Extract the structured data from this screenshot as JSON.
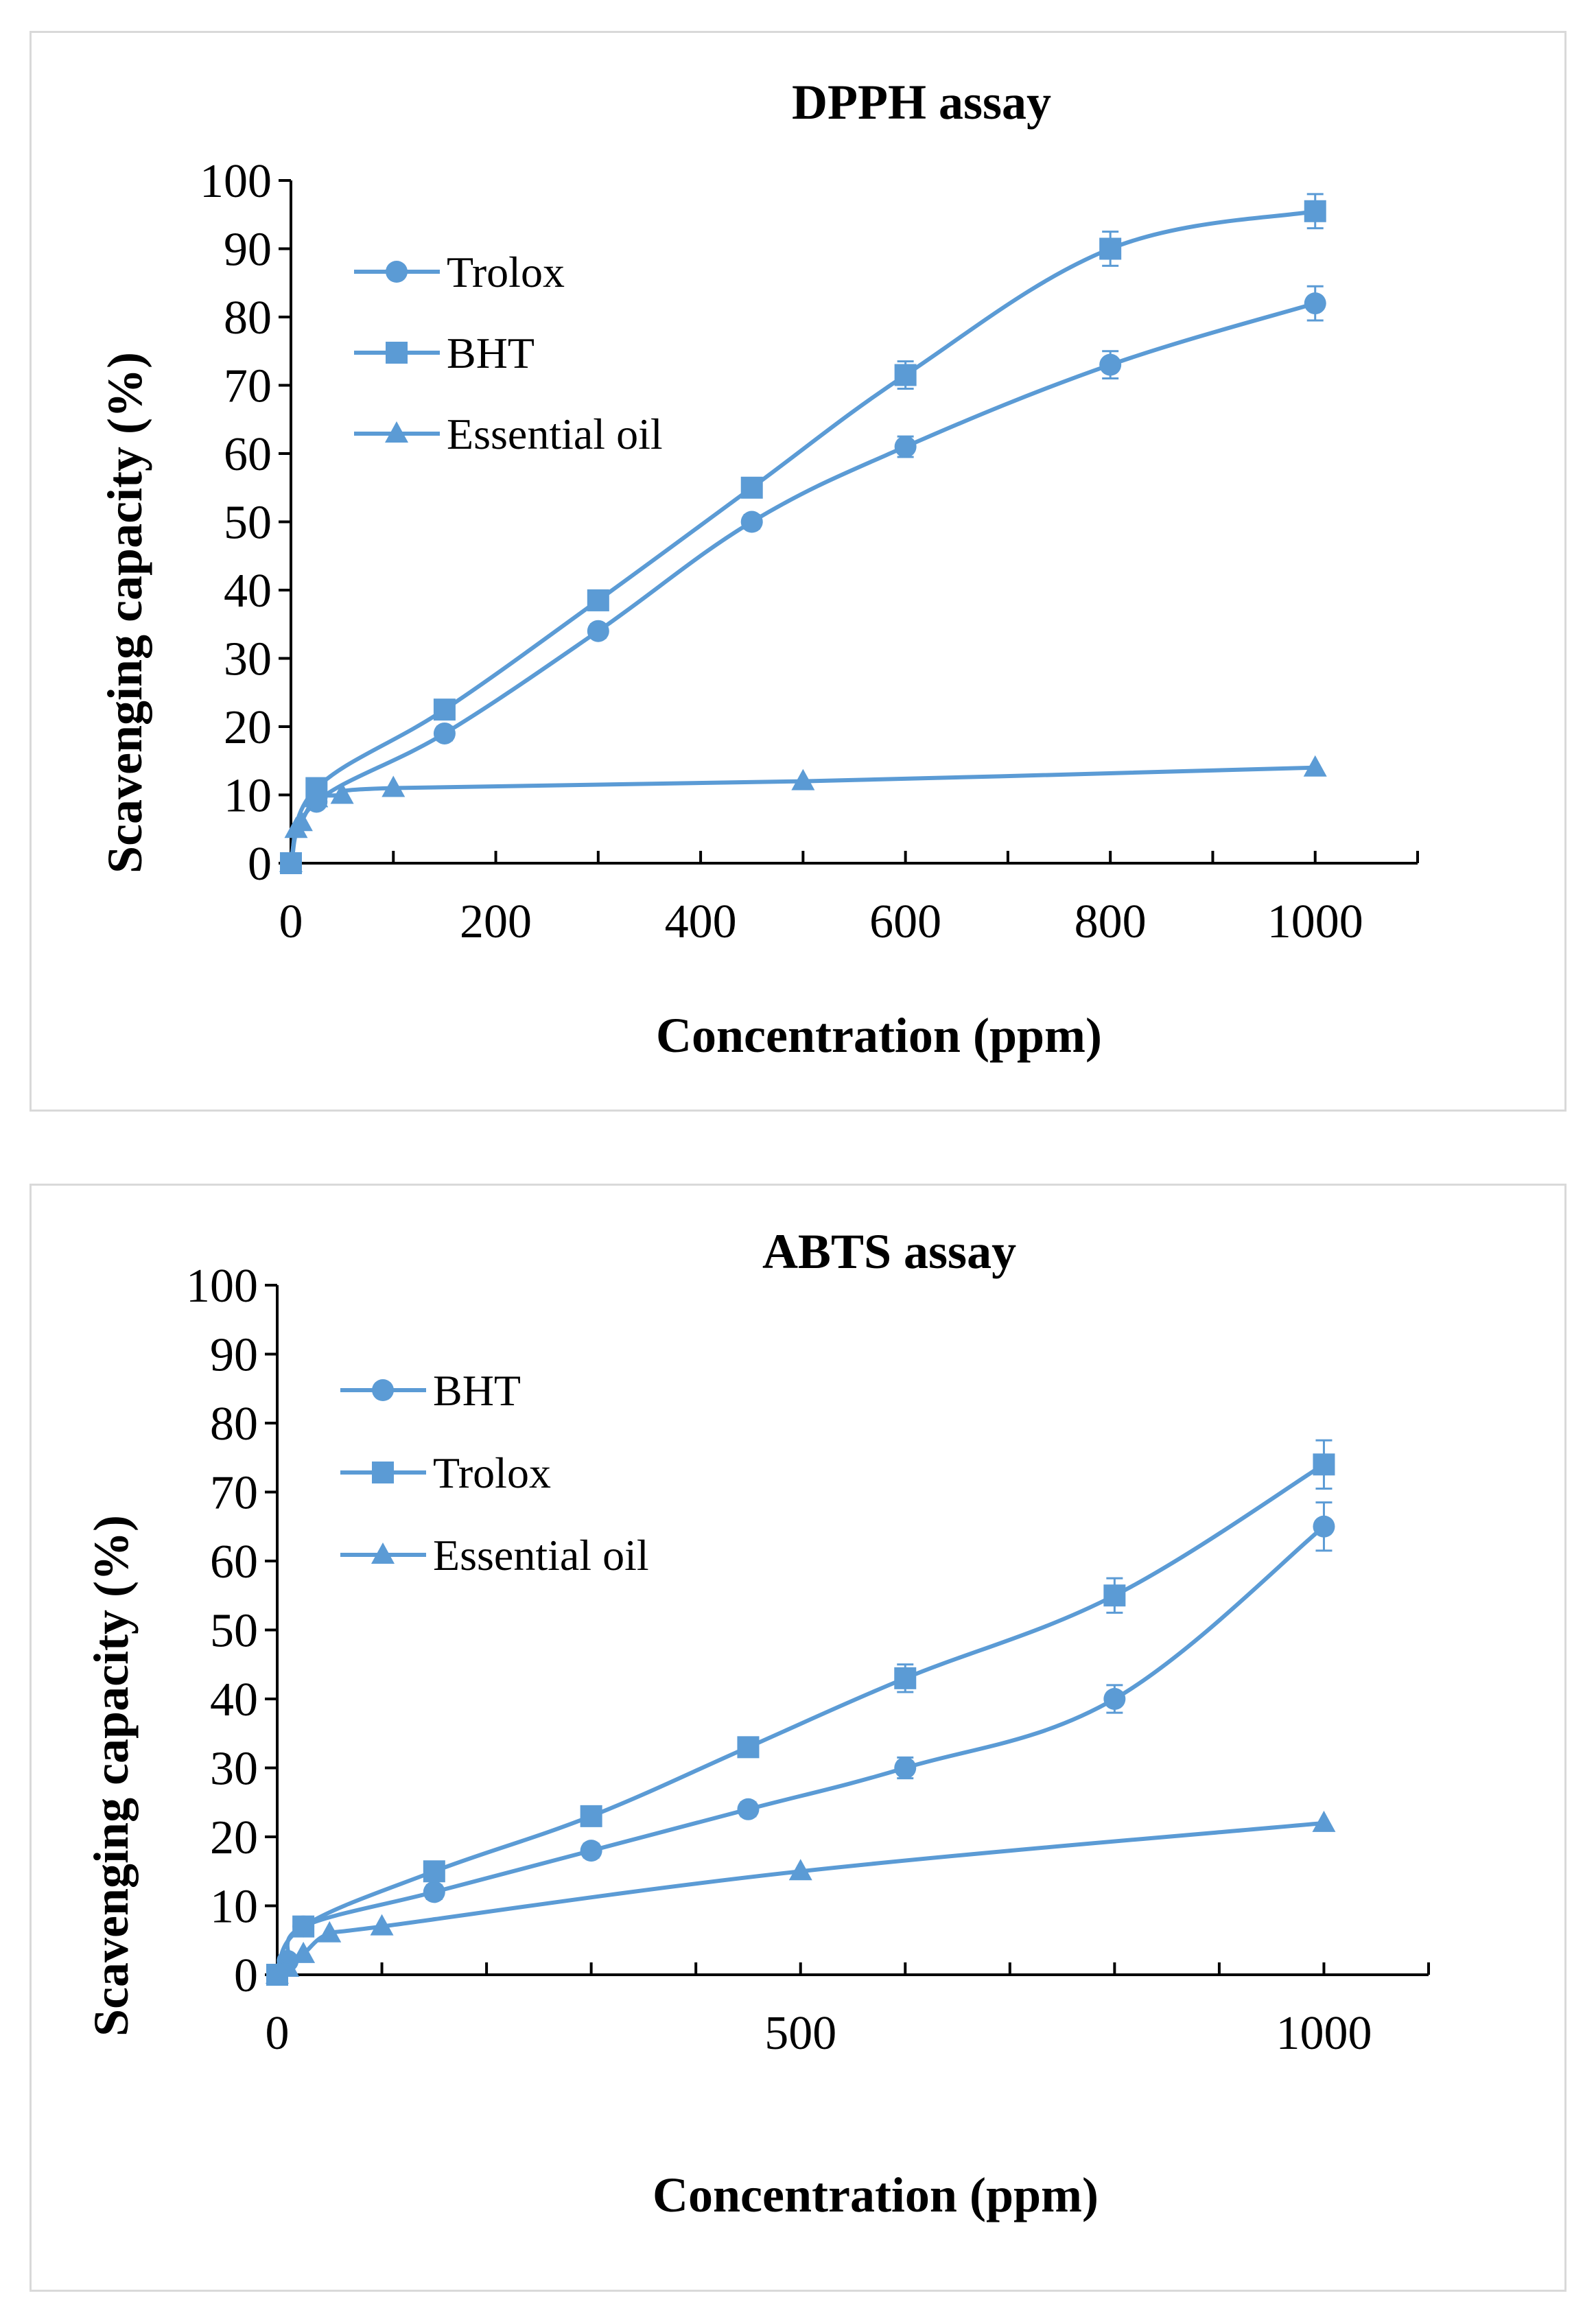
{
  "chart_data": [
    {
      "type": "line",
      "title": "DPPH assay",
      "xlabel": "Concentration (ppm)",
      "ylabel": "Scavenging capacity (%)",
      "xlim": [
        0,
        1100
      ],
      "ylim": [
        0,
        100
      ],
      "xticks": [
        0,
        200,
        400,
        600,
        800,
        1000
      ],
      "yticks": [
        0,
        10,
        20,
        30,
        40,
        50,
        60,
        70,
        80,
        90,
        100
      ],
      "legend_position": "upper-left",
      "series": [
        {
          "name": "Trolox",
          "marker": "circle",
          "color": "#5b9bd5",
          "x": [
            0,
            25,
            150,
            300,
            450,
            600,
            800,
            1000
          ],
          "y": [
            0,
            9,
            19,
            34,
            50,
            61,
            73,
            82
          ],
          "err": [
            0,
            0.5,
            1,
            1,
            1,
            1.5,
            2,
            2.5
          ]
        },
        {
          "name": "BHT",
          "marker": "square",
          "color": "#5b9bd5",
          "x": [
            0,
            25,
            150,
            300,
            450,
            600,
            800,
            1000
          ],
          "y": [
            0,
            11,
            22.5,
            38.5,
            55,
            71.5,
            90,
            95.5
          ],
          "err": [
            0,
            0.5,
            1,
            1,
            1,
            2,
            2.5,
            2.5
          ]
        },
        {
          "name": "Essential oil",
          "marker": "triangle",
          "color": "#5b9bd5",
          "x": [
            0,
            5,
            10,
            25,
            50,
            100,
            500,
            1000
          ],
          "y": [
            0,
            5,
            6,
            9.5,
            10,
            11,
            12,
            14
          ],
          "err": [
            0,
            0,
            0,
            0,
            0,
            0,
            0,
            0
          ]
        }
      ]
    },
    {
      "type": "line",
      "title": "ABTS assay",
      "xlabel": "Concentration (ppm)",
      "ylabel": "Scavenging capacity (%)",
      "xlim": [
        0,
        1100
      ],
      "ylim": [
        0,
        100
      ],
      "xticks": [
        0,
        500,
        1000
      ],
      "yticks": [
        0,
        10,
        20,
        30,
        40,
        50,
        60,
        70,
        80,
        90,
        100
      ],
      "legend_position": "upper-left",
      "series": [
        {
          "name": "BHT",
          "marker": "circle",
          "color": "#5b9bd5",
          "x": [
            0,
            10,
            25,
            150,
            300,
            450,
            600,
            800,
            1000
          ],
          "y": [
            0,
            2,
            7,
            12,
            18,
            24,
            30,
            40,
            65
          ],
          "err": [
            0,
            0,
            0.5,
            1,
            1,
            1,
            1.5,
            2,
            3.5
          ]
        },
        {
          "name": "Trolox",
          "marker": "square",
          "color": "#5b9bd5",
          "x": [
            0,
            25,
            150,
            300,
            450,
            600,
            800,
            1000
          ],
          "y": [
            0,
            7,
            15,
            23,
            33,
            43,
            55,
            74
          ],
          "err": [
            0,
            0.5,
            1,
            1,
            1,
            2,
            2.5,
            3.5
          ]
        },
        {
          "name": "Essential oil",
          "marker": "triangle",
          "color": "#5b9bd5",
          "x": [
            0,
            10,
            25,
            50,
            100,
            500,
            1000
          ],
          "y": [
            0,
            1,
            3,
            6,
            7,
            15,
            22
          ],
          "err": [
            0,
            0,
            0,
            0,
            0,
            0,
            0
          ]
        }
      ]
    }
  ]
}
